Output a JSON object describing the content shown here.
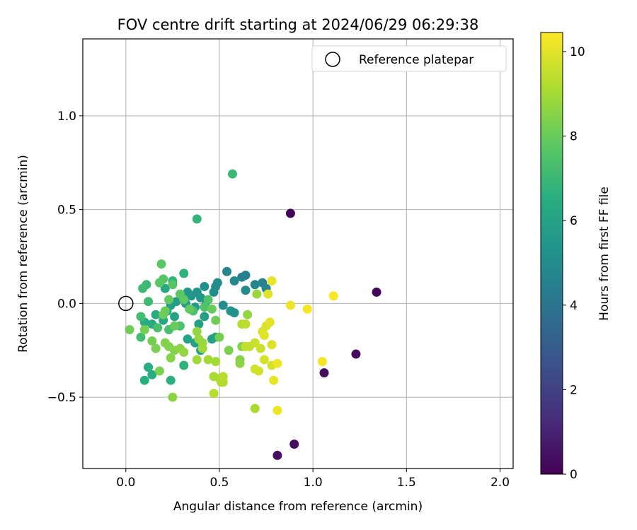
{
  "chart_data": {
    "type": "scatter",
    "title": "FOV centre drift starting at 2024/06/29 06:29:38",
    "xlabel": "Angular distance from reference (arcmin)",
    "ylabel": "Rotation from reference (arcmin)",
    "xlim": [
      -0.23,
      2.07
    ],
    "ylim": [
      -0.88,
      1.41
    ],
    "xticks": [
      0.0,
      0.5,
      1.0,
      1.5,
      2.0
    ],
    "xtick_labels": [
      "0.0",
      "0.5",
      "1.0",
      "1.5",
      "2.0"
    ],
    "yticks": [
      -0.5,
      0.0,
      0.5,
      1.0
    ],
    "ytick_labels": [
      "−0.5",
      "0.0",
      "0.5",
      "1.0"
    ],
    "grid": true,
    "legend": {
      "placement": "top-right",
      "entries": [
        {
          "label": "Reference platepar",
          "marker": "open-circle"
        }
      ]
    },
    "reference_point": {
      "x": 0.0,
      "y": 0.0
    },
    "colorbar": {
      "label": "Hours from first FF file",
      "colormap": "viridis",
      "range": [
        0,
        10.45
      ],
      "ticks": [
        0,
        2,
        4,
        6,
        8,
        10
      ],
      "tick_labels": [
        "0",
        "2",
        "4",
        "6",
        "8",
        "10"
      ]
    },
    "series": [
      {
        "points": [
          {
            "x": 0.88,
            "y": 0.48,
            "h": 0.1
          },
          {
            "x": 1.34,
            "y": 0.06,
            "h": 0.2
          },
          {
            "x": 1.23,
            "y": -0.27,
            "h": 0.3
          },
          {
            "x": 1.06,
            "y": -0.37,
            "h": 0.3
          },
          {
            "x": 0.81,
            "y": -0.81,
            "h": 0.4
          },
          {
            "x": 0.9,
            "y": -0.75,
            "h": 0.4
          },
          {
            "x": 0.62,
            "y": 0.14,
            "h": 4.5
          },
          {
            "x": 0.64,
            "y": 0.15,
            "h": 4.5
          },
          {
            "x": 0.73,
            "y": 0.11,
            "h": 4.6
          },
          {
            "x": 0.75,
            "y": 0.08,
            "h": 4.7
          },
          {
            "x": 0.69,
            "y": 0.1,
            "h": 4.8
          },
          {
            "x": 0.54,
            "y": 0.17,
            "h": 4.8
          },
          {
            "x": 0.58,
            "y": 0.12,
            "h": 4.9
          },
          {
            "x": 0.64,
            "y": 0.07,
            "h": 5.0
          },
          {
            "x": 0.49,
            "y": 0.11,
            "h": 5.0
          },
          {
            "x": 0.48,
            "y": 0.09,
            "h": 5.1
          },
          {
            "x": 0.47,
            "y": 0.06,
            "h": 5.1
          },
          {
            "x": 0.42,
            "y": 0.09,
            "h": 5.2
          },
          {
            "x": 0.52,
            "y": -0.01,
            "h": 5.2
          },
          {
            "x": 0.56,
            "y": -0.04,
            "h": 5.3
          },
          {
            "x": 0.58,
            "y": -0.05,
            "h": 5.3
          },
          {
            "x": 0.38,
            "y": 0.06,
            "h": 5.4
          },
          {
            "x": 0.4,
            "y": 0.03,
            "h": 5.4
          },
          {
            "x": 0.33,
            "y": 0.06,
            "h": 5.5
          },
          {
            "x": 0.35,
            "y": 0.04,
            "h": 5.5
          },
          {
            "x": 0.43,
            "y": 0.01,
            "h": 5.6
          },
          {
            "x": 0.32,
            "y": 0.0,
            "h": 5.6
          },
          {
            "x": 0.37,
            "y": -0.02,
            "h": 5.7
          },
          {
            "x": 0.27,
            "y": 0.01,
            "h": 5.7
          },
          {
            "x": 0.3,
            "y": 0.03,
            "h": 5.8
          },
          {
            "x": 0.24,
            "y": -0.01,
            "h": 5.8
          },
          {
            "x": 0.42,
            "y": -0.07,
            "h": 5.9
          },
          {
            "x": 0.39,
            "y": -0.11,
            "h": 5.9
          },
          {
            "x": 0.46,
            "y": -0.19,
            "h": 5.9
          },
          {
            "x": 0.48,
            "y": -0.18,
            "h": 6.0
          },
          {
            "x": 0.37,
            "y": -0.21,
            "h": 6.0
          },
          {
            "x": 0.4,
            "y": -0.25,
            "h": 6.0
          },
          {
            "x": 0.33,
            "y": -0.19,
            "h": 6.1
          },
          {
            "x": 0.26,
            "y": -0.07,
            "h": 6.1
          },
          {
            "x": 0.22,
            "y": -0.04,
            "h": 6.2
          },
          {
            "x": 0.2,
            "y": -0.09,
            "h": 6.2
          },
          {
            "x": 0.21,
            "y": 0.08,
            "h": 6.3
          },
          {
            "x": 0.16,
            "y": -0.06,
            "h": 6.3
          },
          {
            "x": 0.14,
            "y": -0.11,
            "h": 6.4
          },
          {
            "x": 0.1,
            "y": -0.1,
            "h": 6.4
          },
          {
            "x": 0.12,
            "y": -0.34,
            "h": 6.5
          },
          {
            "x": 0.14,
            "y": -0.38,
            "h": 6.5
          },
          {
            "x": 0.1,
            "y": -0.41,
            "h": 6.6
          },
          {
            "x": 0.24,
            "y": -0.41,
            "h": 6.6
          },
          {
            "x": 0.31,
            "y": -0.33,
            "h": 6.7
          },
          {
            "x": 0.31,
            "y": 0.16,
            "h": 6.7
          },
          {
            "x": 0.25,
            "y": 0.12,
            "h": 6.8
          },
          {
            "x": 0.38,
            "y": 0.45,
            "h": 6.8
          },
          {
            "x": 0.57,
            "y": 0.69,
            "h": 7.0
          },
          {
            "x": 0.11,
            "y": 0.1,
            "h": 7.0
          },
          {
            "x": 0.09,
            "y": 0.08,
            "h": 7.1
          },
          {
            "x": 0.12,
            "y": 0.01,
            "h": 7.1
          },
          {
            "x": 0.08,
            "y": -0.07,
            "h": 7.2
          },
          {
            "x": 0.08,
            "y": -0.18,
            "h": 7.2
          },
          {
            "x": 0.17,
            "y": -0.13,
            "h": 7.3
          },
          {
            "x": 0.23,
            "y": -0.14,
            "h": 7.3
          },
          {
            "x": 0.29,
            "y": -0.12,
            "h": 7.4
          },
          {
            "x": 0.36,
            "y": -0.04,
            "h": 7.4
          },
          {
            "x": 0.42,
            "y": -0.02,
            "h": 7.5
          },
          {
            "x": 0.44,
            "y": 0.02,
            "h": 7.5
          },
          {
            "x": 0.25,
            "y": 0.1,
            "h": 7.6
          },
          {
            "x": 0.2,
            "y": 0.13,
            "h": 7.6
          },
          {
            "x": 0.18,
            "y": 0.11,
            "h": 7.7
          },
          {
            "x": 0.19,
            "y": 0.21,
            "h": 7.7
          },
          {
            "x": 0.29,
            "y": 0.05,
            "h": 7.8
          },
          {
            "x": 0.31,
            "y": 0.02,
            "h": 7.8
          },
          {
            "x": 0.34,
            "y": -0.03,
            "h": 7.9
          },
          {
            "x": 0.23,
            "y": 0.02,
            "h": 7.9
          },
          {
            "x": 0.26,
            "y": -0.12,
            "h": 8.0
          },
          {
            "x": 0.21,
            "y": -0.04,
            "h": 8.0
          },
          {
            "x": 0.2,
            "y": -0.06,
            "h": 8.1
          },
          {
            "x": 0.02,
            "y": -0.14,
            "h": 8.1
          },
          {
            "x": 0.1,
            "y": -0.14,
            "h": 8.2
          },
          {
            "x": 0.14,
            "y": -0.2,
            "h": 8.2
          },
          {
            "x": 0.16,
            "y": -0.24,
            "h": 8.3
          },
          {
            "x": 0.18,
            "y": -0.36,
            "h": 8.3
          },
          {
            "x": 0.21,
            "y": -0.21,
            "h": 8.4
          },
          {
            "x": 0.23,
            "y": -0.23,
            "h": 8.4
          },
          {
            "x": 0.24,
            "y": -0.29,
            "h": 8.5
          },
          {
            "x": 0.26,
            "y": -0.25,
            "h": 8.5
          },
          {
            "x": 0.25,
            "y": -0.5,
            "h": 8.6
          },
          {
            "x": 0.29,
            "y": -0.24,
            "h": 8.6
          },
          {
            "x": 0.31,
            "y": -0.26,
            "h": 8.7
          },
          {
            "x": 0.38,
            "y": -0.15,
            "h": 8.7
          },
          {
            "x": 0.39,
            "y": -0.19,
            "h": 8.8
          },
          {
            "x": 0.41,
            "y": -0.21,
            "h": 8.8
          },
          {
            "x": 0.41,
            "y": -0.24,
            "h": 8.9
          },
          {
            "x": 0.38,
            "y": -0.3,
            "h": 8.9
          },
          {
            "x": 0.44,
            "y": -0.3,
            "h": 9.0
          },
          {
            "x": 0.48,
            "y": -0.31,
            "h": 9.0
          },
          {
            "x": 0.47,
            "y": -0.39,
            "h": 9.1
          },
          {
            "x": 0.5,
            "y": -0.4,
            "h": 9.1
          },
          {
            "x": 0.52,
            "y": -0.42,
            "h": 9.2
          },
          {
            "x": 0.51,
            "y": -0.42,
            "h": 9.2
          },
          {
            "x": 0.52,
            "y": -0.39,
            "h": 9.3
          },
          {
            "x": 0.47,
            "y": -0.48,
            "h": 9.3
          },
          {
            "x": 0.46,
            "y": -0.03,
            "h": 8.0
          },
          {
            "x": 0.48,
            "y": -0.09,
            "h": 8.1
          },
          {
            "x": 0.5,
            "y": -0.18,
            "h": 8.2
          },
          {
            "x": 0.55,
            "y": -0.25,
            "h": 8.3
          },
          {
            "x": 0.62,
            "y": -0.23,
            "h": 8.4
          },
          {
            "x": 0.61,
            "y": -0.3,
            "h": 8.5
          },
          {
            "x": 0.61,
            "y": -0.32,
            "h": 8.6
          },
          {
            "x": 0.65,
            "y": -0.06,
            "h": 8.7
          },
          {
            "x": 0.7,
            "y": 0.05,
            "h": 8.8
          },
          {
            "x": 0.69,
            "y": -0.56,
            "h": 9.1
          },
          {
            "x": 0.62,
            "y": -0.11,
            "h": 9.3
          },
          {
            "x": 0.64,
            "y": -0.11,
            "h": 9.4
          },
          {
            "x": 0.66,
            "y": -0.23,
            "h": 9.5
          },
          {
            "x": 0.64,
            "y": -0.23,
            "h": 9.5
          },
          {
            "x": 0.69,
            "y": -0.21,
            "h": 9.6
          },
          {
            "x": 0.72,
            "y": -0.24,
            "h": 9.6
          },
          {
            "x": 0.69,
            "y": -0.35,
            "h": 9.7
          },
          {
            "x": 0.71,
            "y": -0.36,
            "h": 9.7
          },
          {
            "x": 0.74,
            "y": -0.3,
            "h": 9.8
          },
          {
            "x": 0.78,
            "y": -0.33,
            "h": 9.8
          },
          {
            "x": 0.78,
            "y": -0.22,
            "h": 9.9
          },
          {
            "x": 0.73,
            "y": -0.15,
            "h": 9.9
          },
          {
            "x": 0.75,
            "y": -0.12,
            "h": 9.9
          },
          {
            "x": 0.77,
            "y": -0.1,
            "h": 10.0
          },
          {
            "x": 0.74,
            "y": -0.17,
            "h": 10.0
          },
          {
            "x": 0.76,
            "y": 0.05,
            "h": 10.0
          },
          {
            "x": 0.78,
            "y": 0.12,
            "h": 10.1
          },
          {
            "x": 0.79,
            "y": -0.41,
            "h": 10.1
          },
          {
            "x": 0.81,
            "y": -0.32,
            "h": 10.2
          },
          {
            "x": 0.81,
            "y": -0.57,
            "h": 10.2
          },
          {
            "x": 0.88,
            "y": -0.01,
            "h": 10.2
          },
          {
            "x": 0.97,
            "y": -0.03,
            "h": 10.3
          },
          {
            "x": 1.05,
            "y": -0.31,
            "h": 10.3
          },
          {
            "x": 1.11,
            "y": 0.04,
            "h": 10.4
          }
        ]
      }
    ]
  }
}
